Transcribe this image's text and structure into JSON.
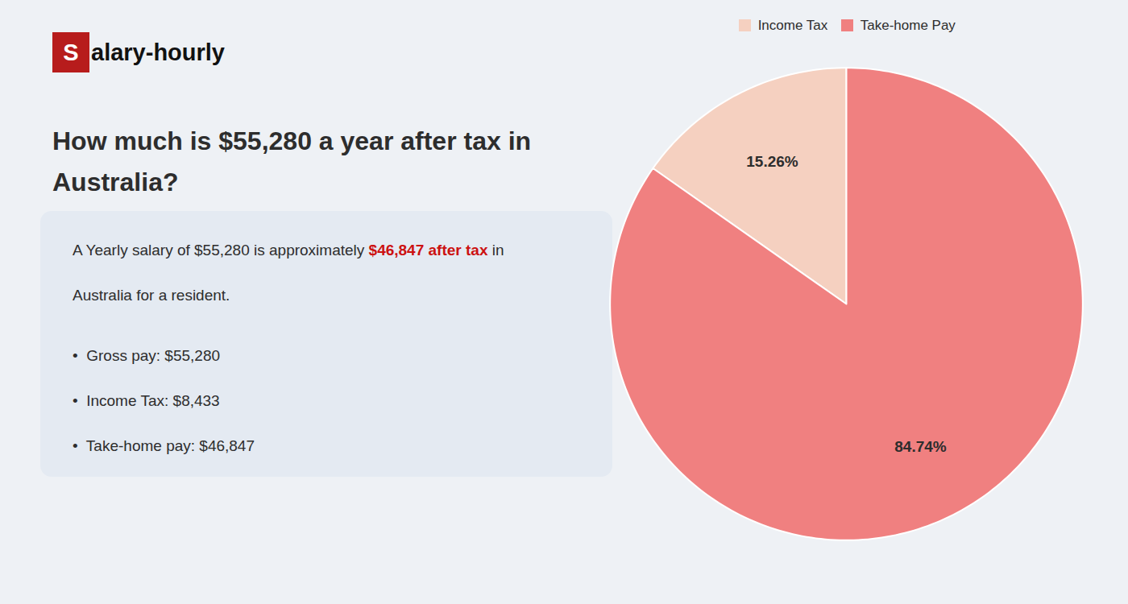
{
  "chart_data": {
    "type": "pie",
    "title": "How much is $55,280 a year after tax in Australia?",
    "categories": [
      "Income Tax",
      "Take-home Pay"
    ],
    "values": [
      15.26,
      84.74
    ],
    "value_labels": [
      "15.26%",
      "84.74%"
    ],
    "colors": [
      "#f5d0c0",
      "#f08080"
    ],
    "data_labels": true,
    "legend": "top",
    "annotations": [
      "Salary-hourly",
      "A Yearly salary of $55,280 is approximately ",
      "$46,847 after tax",
      " in",
      "Australia for a resident.",
      "•  Gross pay: $55,280",
      "•  Income Tax: $8,433",
      "•  Take-home pay: $46,847"
    ]
  }
}
